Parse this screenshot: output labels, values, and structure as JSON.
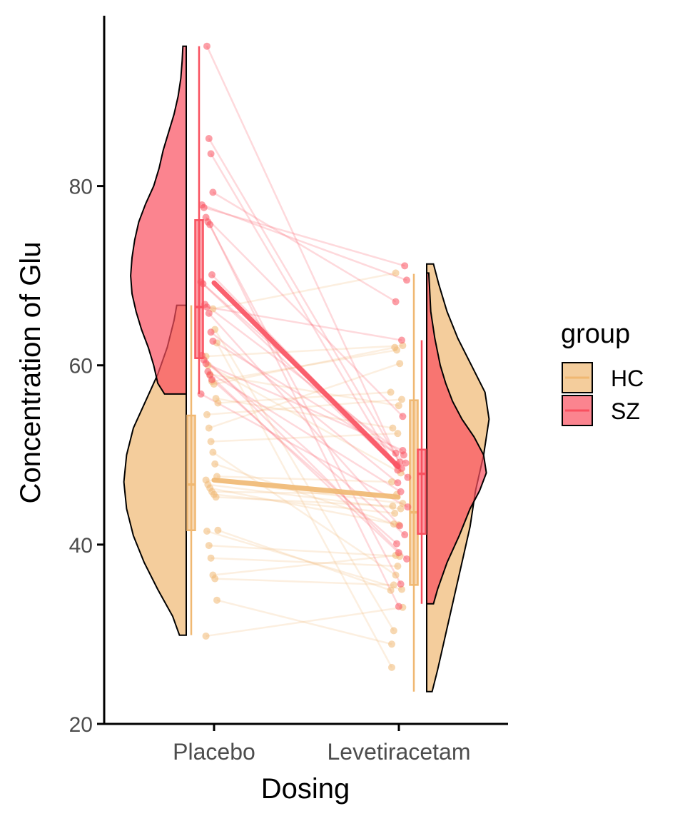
{
  "chart_data": {
    "type": "raincloud",
    "xlabel": "Dosing",
    "ylabel": "Concentration of Glu",
    "categories": [
      "Placebo",
      "Levetiracetam"
    ],
    "ylim": [
      20,
      99
    ],
    "yticks": [
      20,
      40,
      60,
      80
    ],
    "legend": {
      "title": "group",
      "placement": "right",
      "entries": [
        {
          "name": "HC",
          "color": "#f0b872"
        },
        {
          "name": "SZ",
          "color": "#f9505f"
        }
      ]
    },
    "colors": {
      "HC": "#f0b872",
      "SZ": "#f9505f",
      "axis": "#000000",
      "tick_label": "#4d4d4d"
    },
    "series": [
      {
        "name": "HC",
        "mean_line": [
          47.2,
          45.3
        ],
        "box_stats": {
          "Placebo": {
            "min": 29.9,
            "q1": 41.6,
            "median": 46.7,
            "q3": 54.4,
            "max": 66.7
          },
          "Levetiracetam": {
            "min": 23.6,
            "q1": 35.5,
            "median": 43.6,
            "q3": 56.1,
            "max": 70.2
          }
        },
        "density": {
          "Placebo": [
            [
              29.9,
              0.1
            ],
            [
              32,
              0.2
            ],
            [
              35,
              0.42
            ],
            [
              38,
              0.62
            ],
            [
              41,
              0.78
            ],
            [
              44,
              0.88
            ],
            [
              47,
              0.92
            ],
            [
              50,
              0.88
            ],
            [
              53,
              0.78
            ],
            [
              56,
              0.6
            ],
            [
              59,
              0.42
            ],
            [
              62,
              0.28
            ],
            [
              65,
              0.18
            ],
            [
              66.7,
              0.14
            ]
          ],
          "Levetiracetam": [
            [
              23.6,
              0.08
            ],
            [
              26,
              0.16
            ],
            [
              30,
              0.28
            ],
            [
              34,
              0.4
            ],
            [
              38,
              0.52
            ],
            [
              42,
              0.64
            ],
            [
              46,
              0.72
            ],
            [
              50,
              0.84
            ],
            [
              54,
              0.92
            ],
            [
              57,
              0.86
            ],
            [
              60,
              0.66
            ],
            [
              63,
              0.46
            ],
            [
              66,
              0.3
            ],
            [
              69,
              0.18
            ],
            [
              71.3,
              0.1
            ]
          ]
        },
        "points": [
          [
            29.8,
            33.0
          ],
          [
            33.8,
            28.9
          ],
          [
            36.2,
            35.5
          ],
          [
            36.6,
            38.8
          ],
          [
            38.5,
            37.6
          ],
          [
            39.9,
            38.7
          ],
          [
            41.5,
            35.0
          ],
          [
            41.6,
            34.9
          ],
          [
            45.3,
            44.3
          ],
          [
            45.6,
            43.5
          ],
          [
            45.9,
            45.6
          ],
          [
            46.3,
            42.2
          ],
          [
            46.7,
            44.0
          ],
          [
            47.2,
            44.6
          ],
          [
            47.6,
            47.0
          ],
          [
            49.0,
            42.3
          ],
          [
            50.3,
            36.6
          ],
          [
            51.5,
            52.4
          ],
          [
            53.0,
            60.2
          ],
          [
            54.5,
            56.2
          ],
          [
            55.8,
            57.0
          ],
          [
            56.3,
            53.0
          ],
          [
            57.9,
            62.0
          ],
          [
            58.2,
            61.7
          ],
          [
            59.0,
            55.5
          ],
          [
            60.0,
            48.0
          ],
          [
            61.0,
            62.2
          ],
          [
            62.5,
            26.3
          ],
          [
            64.0,
            30.4
          ],
          [
            66.3,
            70.3
          ]
        ]
      },
      {
        "name": "SZ",
        "mean_line": [
          69.2,
          48.7
        ],
        "box_stats": {
          "Placebo": {
            "min": 56.8,
            "q1": 60.8,
            "median": 66.5,
            "q3": 76.2,
            "max": 95.6
          },
          "Levetiracetam": {
            "min": 33.4,
            "q1": 41.2,
            "median": 47.9,
            "q3": 50.6,
            "max": 62.8
          }
        },
        "density": {
          "Placebo": [
            [
              56.8,
              0.32
            ],
            [
              58,
              0.42
            ],
            [
              60,
              0.48
            ],
            [
              62,
              0.56
            ],
            [
              64,
              0.66
            ],
            [
              66,
              0.74
            ],
            [
              68,
              0.8
            ],
            [
              70,
              0.82
            ],
            [
              72,
              0.8
            ],
            [
              74,
              0.76
            ],
            [
              76,
              0.7
            ],
            [
              78,
              0.6
            ],
            [
              80,
              0.48
            ],
            [
              82,
              0.4
            ],
            [
              84,
              0.34
            ],
            [
              86,
              0.26
            ],
            [
              88,
              0.18
            ],
            [
              90,
              0.12
            ],
            [
              92,
              0.08
            ],
            [
              94,
              0.06
            ],
            [
              95.6,
              0.05
            ]
          ],
          "Levetiracetam": [
            [
              33.4,
              0.1
            ],
            [
              35,
              0.16
            ],
            [
              38,
              0.3
            ],
            [
              41,
              0.48
            ],
            [
              44,
              0.64
            ],
            [
              46,
              0.78
            ],
            [
              48,
              0.88
            ],
            [
              50,
              0.84
            ],
            [
              52,
              0.7
            ],
            [
              54,
              0.52
            ],
            [
              56,
              0.38
            ],
            [
              58,
              0.28
            ],
            [
              60,
              0.2
            ],
            [
              63,
              0.12
            ],
            [
              66,
              0.06
            ],
            [
              69,
              0.04
            ],
            [
              70.3,
              0.03
            ]
          ]
        },
        "points": [
          [
            56.8,
            44.2
          ],
          [
            58.4,
            40.1
          ],
          [
            58.9,
            39.1
          ],
          [
            59.3,
            45.9
          ],
          [
            60.2,
            50.5
          ],
          [
            60.6,
            41.1
          ],
          [
            61.1,
            38.4
          ],
          [
            62.7,
            50.2
          ],
          [
            63.7,
            46.9
          ],
          [
            65.8,
            42.1
          ],
          [
            66.5,
            62.8
          ],
          [
            66.8,
            50.0
          ],
          [
            69.1,
            49.1
          ],
          [
            69.3,
            47.5
          ],
          [
            70.1,
            48.9
          ],
          [
            75.7,
            33.1
          ],
          [
            76.0,
            35.6
          ],
          [
            76.5,
            54.3
          ],
          [
            77.6,
            71.1
          ],
          [
            77.9,
            69.5
          ],
          [
            79.3,
            67.1
          ],
          [
            83.6,
            48.3
          ],
          [
            85.3,
            49.2
          ],
          [
            95.6,
            48.5
          ]
        ]
      }
    ]
  }
}
